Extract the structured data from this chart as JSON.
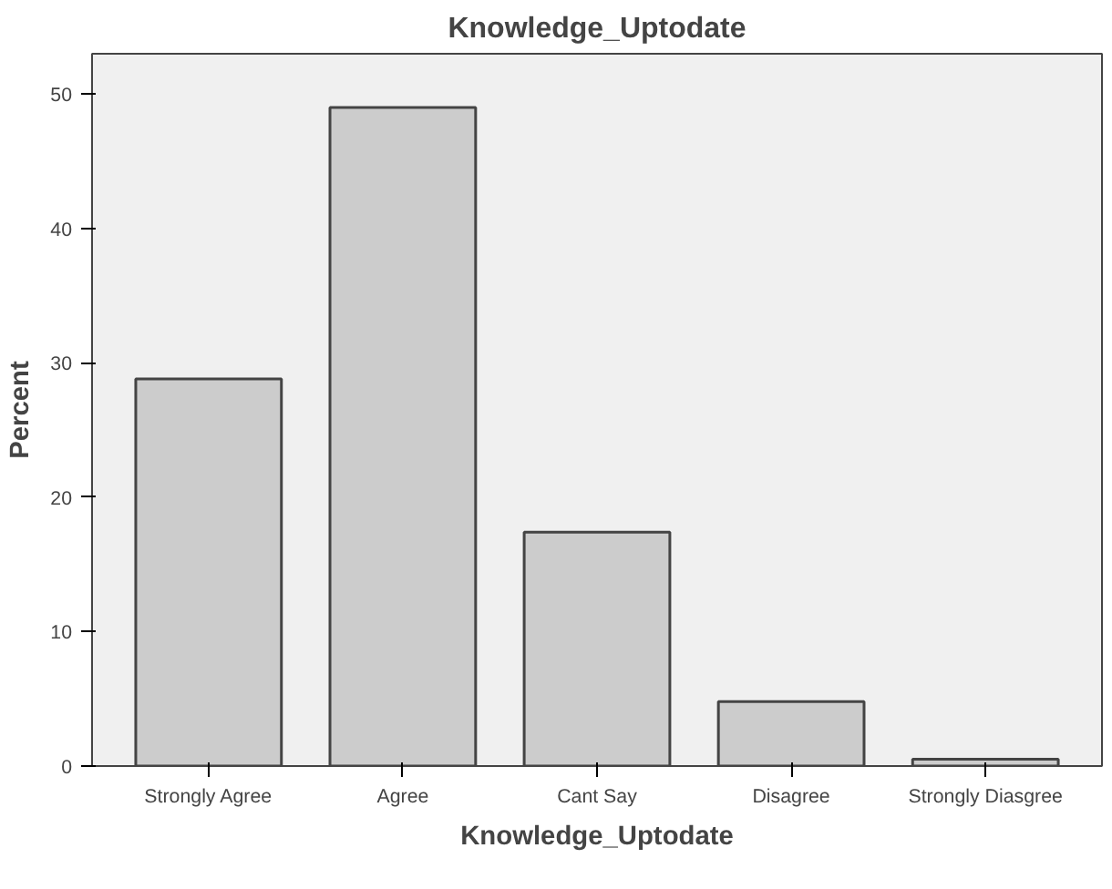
{
  "chart_data": {
    "type": "bar",
    "title": "Knowledge_Uptodate",
    "xlabel": "Knowledge_Uptodate",
    "ylabel": "Percent",
    "categories": [
      "Strongly Agree",
      "Agree",
      "Cant Say",
      "Disagree",
      "Strongly Diasgree"
    ],
    "values": [
      28.8,
      49.0,
      17.4,
      4.8,
      0.5
    ],
    "color": "#cccccc",
    "ylim": [
      0,
      53
    ],
    "yticks": [
      0,
      10,
      20,
      30,
      40,
      50
    ],
    "grid": false
  }
}
